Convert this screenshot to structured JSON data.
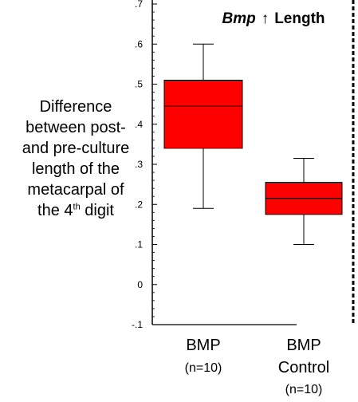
{
  "y_axis_label": {
    "line1": "Difference",
    "line2": "between post-",
    "line3": "and pre-culture",
    "line4": "length of the",
    "line5": "metacarpal of",
    "line6_pre": "the 4",
    "line6_sup": "th",
    "line6_post": " digit"
  },
  "chart_data": {
    "type": "box",
    "title": {
      "gene": "Bmp",
      "arrow": "↑",
      "rest": "Length"
    },
    "ylim": [
      -0.1,
      0.7
    ],
    "y_ticks": [
      {
        "value": 0.7,
        "label": ".7"
      },
      {
        "value": 0.6,
        "label": ".6"
      },
      {
        "value": 0.5,
        "label": ".5"
      },
      {
        "value": 0.4,
        "label": ".4"
      },
      {
        "value": 0.3,
        "label": ".3"
      },
      {
        "value": 0.2,
        "label": ".2"
      },
      {
        "value": 0.1,
        "label": ".1"
      },
      {
        "value": 0.0,
        "label": "0"
      },
      {
        "value": -0.1,
        "label": "-.1"
      }
    ],
    "box_color": "#ff0000",
    "groups": [
      {
        "name": "BMP",
        "n_label": "(n=10)",
        "min": 0.19,
        "q1": 0.34,
        "median": 0.445,
        "q3": 0.51,
        "max": 0.6
      },
      {
        "name": "BMP",
        "name_line2": "Control",
        "n_label": "(n=10)",
        "min": 0.1,
        "q1": 0.175,
        "median": 0.215,
        "q3": 0.255,
        "max": 0.315
      }
    ]
  }
}
